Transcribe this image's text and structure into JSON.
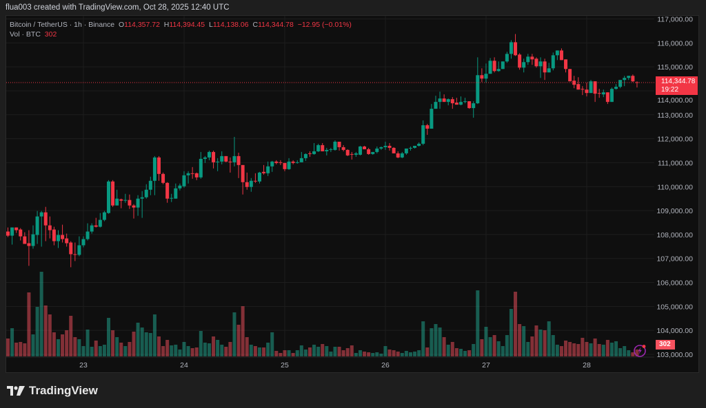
{
  "header": {
    "caption": "flua003 created with TradingView.com, Oct 28, 2025 12:40 UTC"
  },
  "legend": {
    "symbol": "Bitcoin / TetherUS · 1h · Binance",
    "o_label": "O",
    "o_value": "114,357.72",
    "h_label": "H",
    "h_value": "114,394.45",
    "l_label": "L",
    "l_value": "114,138.06",
    "c_label": "C",
    "c_value": "114,344.78",
    "change": "−12.95 (−0.01%)",
    "vol_label": "Vol · BTC",
    "vol_value": "302"
  },
  "price_badge": {
    "price": "114,344.78",
    "countdown": "19:22"
  },
  "volume_badge": {
    "value": "302"
  },
  "footer": {
    "logo_text": "TradingView"
  },
  "icons": {
    "alert": "lightning-alert-icon",
    "logo": "tradingview-logo-icon"
  },
  "colors": {
    "up": "#089981",
    "down": "#f23645",
    "background": "#0f0f0f",
    "price_line": "#f23645",
    "alert": "#9c27b0"
  },
  "chart_data": {
    "type": "candlestick",
    "symbol": "BTCUSDT",
    "interval": "1h",
    "ylim": [
      103000,
      117000
    ],
    "y_ticks": [
      "117,000.00",
      "116,000.00",
      "115,000.00",
      "114,000.00",
      "113,000.00",
      "112,000.00",
      "111,000.00",
      "110,000.00",
      "109,000.00",
      "108,000.00",
      "107,000.00",
      "106,000.00",
      "105,000.00",
      "104,000.00",
      "103,000.00"
    ],
    "y_tick_values": [
      117000,
      116000,
      115000,
      114000,
      113000,
      112000,
      111000,
      110000,
      109000,
      108000,
      107000,
      106000,
      105000,
      104000,
      103000
    ],
    "x_ticks": [
      {
        "label": "23",
        "time": "10-23 00:00"
      },
      {
        "label": "24",
        "time": "10-24 00:00"
      },
      {
        "label": "25",
        "time": "10-25 00:00"
      },
      {
        "label": "26",
        "time": "10-26 00:00"
      },
      {
        "label": "27",
        "time": "10-27 00:00"
      },
      {
        "label": "28",
        "time": "10-28 00:00"
      }
    ],
    "last_price": 114344.78,
    "grid": true,
    "columns": [
      "time",
      "open",
      "high",
      "low",
      "close",
      "volume"
    ],
    "candles": [
      [
        "10-22 06:00",
        108125,
        108296,
        107895,
        107953,
        780
      ],
      [
        "10-22 07:00",
        107953,
        108296,
        107581,
        108296,
        1230
      ],
      [
        "10-22 08:00",
        108296,
        108296,
        108067,
        108182,
        600
      ],
      [
        "10-22 09:00",
        108210,
        108268,
        107753,
        107924,
        630
      ],
      [
        "10-22 10:00",
        107924,
        108096,
        107609,
        107609,
        570
      ],
      [
        "10-22 11:00",
        107638,
        108182,
        106693,
        107523,
        2790
      ],
      [
        "10-22 12:00",
        107523,
        108382,
        107409,
        108010,
        960
      ],
      [
        "10-22 13:00",
        107982,
        108984,
        107609,
        108755,
        2160
      ],
      [
        "10-22 14:00",
        108755,
        108984,
        107495,
        108927,
        3690
      ],
      [
        "10-22 15:00",
        108927,
        109155,
        107724,
        108382,
        2220
      ],
      [
        "10-22 16:00",
        108382,
        108755,
        107838,
        108182,
        1830
      ],
      [
        "10-22 17:00",
        108210,
        108325,
        107552,
        107724,
        1050
      ],
      [
        "10-22 18:00",
        107724,
        108182,
        107438,
        107982,
        750
      ],
      [
        "10-22 19:00",
        107982,
        108411,
        107667,
        107810,
        960
      ],
      [
        "10-22 20:00",
        107838,
        108039,
        107495,
        107638,
        1140
      ],
      [
        "10-22 21:00",
        107667,
        107724,
        106635,
        107180,
        1770
      ],
      [
        "10-22 22:00",
        107180,
        107667,
        106893,
        107151,
        840
      ],
      [
        "10-22 23:00",
        107151,
        107924,
        107094,
        107552,
        750
      ],
      [
        "10-23 00:00",
        107552,
        107924,
        107466,
        107810,
        450
      ],
      [
        "10-23 01:00",
        107810,
        108469,
        107753,
        108125,
        1170
      ],
      [
        "10-23 02:00",
        108125,
        108469,
        108039,
        108382,
        420
      ],
      [
        "10-23 03:00",
        108382,
        108697,
        108296,
        108325,
        690
      ],
      [
        "10-23 04:00",
        108325,
        108898,
        108296,
        108612,
        450
      ],
      [
        "10-23 05:00",
        108612,
        108984,
        108555,
        108927,
        510
      ],
      [
        "10-23 06:00",
        108898,
        110272,
        108869,
        110215,
        1680
      ],
      [
        "10-23 07:00",
        110215,
        110272,
        109155,
        109213,
        1140
      ],
      [
        "10-23 08:00",
        109213,
        109871,
        109213,
        109499,
        840
      ],
      [
        "10-23 09:00",
        109470,
        109499,
        109098,
        109413,
        600
      ],
      [
        "10-23 10:00",
        109413,
        109699,
        109327,
        109442,
        450
      ],
      [
        "10-23 11:00",
        109442,
        109671,
        109069,
        109213,
        630
      ],
      [
        "10-23 12:00",
        109213,
        109270,
        108669,
        109127,
        1080
      ],
      [
        "10-23 13:00",
        109127,
        109642,
        108783,
        109499,
        1470
      ],
      [
        "10-23 14:00",
        109499,
        109814,
        108697,
        109556,
        1260
      ],
      [
        "10-23 15:00",
        109556,
        110100,
        109499,
        109871,
        1050
      ],
      [
        "10-23 16:00",
        109871,
        110415,
        109642,
        110243,
        1020
      ],
      [
        "10-23 17:00",
        110243,
        111274,
        109642,
        111217,
        1830
      ],
      [
        "10-23 18:00",
        111217,
        111274,
        110243,
        110530,
        870
      ],
      [
        "10-23 19:00",
        110530,
        110587,
        110100,
        110157,
        450
      ],
      [
        "10-23 20:00",
        110157,
        110186,
        109327,
        109499,
        720
      ],
      [
        "10-23 21:00",
        109499,
        109699,
        109356,
        109528,
        480
      ],
      [
        "10-23 22:00",
        109499,
        110129,
        109499,
        109928,
        510
      ],
      [
        "10-23 23:00",
        109928,
        110129,
        109842,
        110043,
        300
      ],
      [
        "10-24 00:00",
        110014,
        110644,
        109957,
        110472,
        630
      ],
      [
        "10-24 01:00",
        110472,
        110644,
        110129,
        110558,
        450
      ],
      [
        "10-24 02:00",
        110558,
        110816,
        110329,
        110530,
        360
      ],
      [
        "10-24 03:00",
        110558,
        110587,
        110272,
        110386,
        390
      ],
      [
        "10-24 04:00",
        110386,
        111446,
        110329,
        111159,
        1110
      ],
      [
        "10-24 05:00",
        111159,
        111274,
        110988,
        111217,
        600
      ],
      [
        "10-24 06:00",
        111217,
        111503,
        111102,
        111446,
        570
      ],
      [
        "10-24 07:00",
        111446,
        111503,
        110759,
        111016,
        870
      ],
      [
        "10-24 08:00",
        111016,
        111188,
        110644,
        111045,
        720
      ],
      [
        "10-24 09:00",
        111045,
        111474,
        110930,
        111274,
        510
      ],
      [
        "10-24 10:00",
        111274,
        111274,
        111016,
        111045,
        420
      ],
      [
        "10-24 11:00",
        111045,
        111217,
        110587,
        111016,
        630
      ],
      [
        "10-24 12:00",
        111016,
        112076,
        110845,
        111274,
        1920
      ],
      [
        "10-24 13:00",
        111274,
        111417,
        110358,
        110902,
        1380
      ],
      [
        "10-24 14:00",
        110902,
        110902,
        109671,
        110186,
        2190
      ],
      [
        "10-24 15:00",
        110186,
        110587,
        109871,
        109986,
        840
      ],
      [
        "10-24 16:00",
        109986,
        110358,
        109785,
        110243,
        510
      ],
      [
        "10-24 17:00",
        110243,
        110558,
        110157,
        110215,
        450
      ],
      [
        "10-24 18:00",
        110215,
        110616,
        110129,
        110587,
        390
      ],
      [
        "10-24 19:00",
        110616,
        110902,
        110501,
        110558,
        390
      ],
      [
        "10-24 20:00",
        110558,
        111045,
        110444,
        110845,
        600
      ],
      [
        "10-24 21:00",
        110845,
        111074,
        110616,
        111045,
        1050
      ],
      [
        "10-24 22:00",
        111045,
        111102,
        110930,
        110988,
        240
      ],
      [
        "10-24 23:00",
        111016,
        111102,
        110902,
        110988,
        150
      ],
      [
        "10-25 00:00",
        110988,
        110988,
        110644,
        110730,
        270
      ],
      [
        "10-25 01:00",
        110730,
        111188,
        110701,
        111045,
        270
      ],
      [
        "10-25 02:00",
        111045,
        111102,
        110930,
        110988,
        150
      ],
      [
        "10-25 03:00",
        110988,
        111102,
        110959,
        111016,
        270
      ],
      [
        "10-25 04:00",
        111016,
        111446,
        111016,
        111188,
        480
      ],
      [
        "10-25 05:00",
        111188,
        111389,
        111074,
        111360,
        300
      ],
      [
        "10-25 06:00",
        111389,
        111474,
        111245,
        111360,
        390
      ],
      [
        "10-25 07:00",
        111360,
        111818,
        111331,
        111474,
        510
      ],
      [
        "10-25 08:00",
        111474,
        111789,
        111446,
        111732,
        420
      ],
      [
        "10-25 09:00",
        111732,
        111818,
        111474,
        111474,
        540
      ],
      [
        "10-25 10:00",
        111474,
        111618,
        111303,
        111532,
        450
      ],
      [
        "10-25 11:00",
        111532,
        111618,
        111446,
        111560,
        210
      ],
      [
        "10-25 12:00",
        111532,
        111932,
        111503,
        111875,
        420
      ],
      [
        "10-25 13:00",
        111875,
        111875,
        111503,
        111646,
        420
      ],
      [
        "10-25 14:00",
        111646,
        111732,
        111474,
        111532,
        270
      ],
      [
        "10-25 15:00",
        111532,
        111560,
        111274,
        111303,
        360
      ],
      [
        "10-25 16:00",
        111360,
        111446,
        111131,
        111331,
        480
      ],
      [
        "10-25 17:00",
        111331,
        111446,
        111245,
        111389,
        150
      ],
      [
        "10-25 18:00",
        111331,
        111703,
        111303,
        111675,
        270
      ],
      [
        "10-25 19:00",
        111675,
        111703,
        111560,
        111560,
        210
      ],
      [
        "10-25 20:00",
        111560,
        111618,
        111331,
        111360,
        180
      ],
      [
        "10-25 21:00",
        111360,
        111446,
        111331,
        111446,
        150
      ],
      [
        "10-25 22:00",
        111446,
        111675,
        111389,
        111589,
        180
      ],
      [
        "10-25 23:00",
        111589,
        111675,
        111532,
        111646,
        120
      ],
      [
        "10-26 00:00",
        111646,
        111875,
        111532,
        111703,
        450
      ],
      [
        "10-26 01:00",
        111703,
        111818,
        111503,
        111618,
        300
      ],
      [
        "10-26 02:00",
        111618,
        111646,
        111389,
        111389,
        270
      ],
      [
        "10-26 03:00",
        111389,
        111474,
        111188,
        111217,
        210
      ],
      [
        "10-26 04:00",
        111217,
        111446,
        111188,
        111389,
        150
      ],
      [
        "10-26 05:00",
        111389,
        111589,
        111331,
        111589,
        240
      ],
      [
        "10-26 06:00",
        111589,
        111675,
        111503,
        111618,
        180
      ],
      [
        "10-26 07:00",
        111618,
        111703,
        111589,
        111703,
        210
      ],
      [
        "10-26 08:00",
        111703,
        111847,
        111675,
        111789,
        270
      ],
      [
        "10-26 09:00",
        111790,
        112763,
        111732,
        112562,
        1530
      ],
      [
        "10-26 10:00",
        112562,
        112620,
        112162,
        112419,
        390
      ],
      [
        "10-26 11:00",
        112419,
        113450,
        112419,
        113249,
        1230
      ],
      [
        "10-26 12:00",
        113249,
        113793,
        113249,
        113536,
        1410
      ],
      [
        "10-26 13:00",
        113536,
        113965,
        113249,
        113679,
        1260
      ],
      [
        "10-26 14:00",
        113679,
        113851,
        113536,
        113536,
        840
      ],
      [
        "10-26 15:00",
        113536,
        113679,
        113393,
        113650,
        510
      ],
      [
        "10-26 16:00",
        113650,
        113736,
        113249,
        113479,
        630
      ],
      [
        "10-26 17:00",
        113507,
        113708,
        113421,
        113421,
        360
      ],
      [
        "10-26 18:00",
        113421,
        113765,
        113393,
        113536,
        330
      ],
      [
        "10-26 19:00",
        113536,
        113708,
        113479,
        113564,
        240
      ],
      [
        "10-26 20:00",
        113564,
        113564,
        113249,
        113278,
        270
      ],
      [
        "10-26 21:00",
        113278,
        113564,
        112877,
        113479,
        540
      ],
      [
        "10-26 22:00",
        113479,
        115397,
        113450,
        114652,
        2880
      ],
      [
        "10-26 23:00",
        114652,
        114939,
        114366,
        114509,
        750
      ],
      [
        "10-27 00:00",
        114509,
        115139,
        114337,
        114710,
        1290
      ],
      [
        "10-27 01:00",
        114710,
        115368,
        114710,
        115254,
        840
      ],
      [
        "10-27 02:00",
        115254,
        115397,
        114767,
        114824,
        930
      ],
      [
        "10-27 03:00",
        114824,
        115225,
        114796,
        114910,
        660
      ],
      [
        "10-27 04:00",
        114910,
        115225,
        114910,
        115225,
        450
      ],
      [
        "10-27 05:00",
        115225,
        115626,
        115168,
        115540,
        930
      ],
      [
        "10-27 06:00",
        115540,
        116112,
        115340,
        116027,
        2070
      ],
      [
        "10-27 07:00",
        116027,
        116370,
        115454,
        115483,
        2820
      ],
      [
        "10-27 08:00",
        115512,
        115569,
        114881,
        114967,
        1410
      ],
      [
        "10-27 09:00",
        114967,
        115340,
        114767,
        115197,
        1320
      ],
      [
        "10-27 10:00",
        115197,
        115540,
        115082,
        115425,
        630
      ],
      [
        "10-27 11:00",
        115425,
        115540,
        115082,
        115311,
        870
      ],
      [
        "10-27 12:00",
        115340,
        115397,
        114967,
        115025,
        1350
      ],
      [
        "10-27 13:00",
        115025,
        115397,
        114538,
        115225,
        1170
      ],
      [
        "10-27 14:00",
        115225,
        115340,
        114452,
        114767,
        1140
      ],
      [
        "10-27 15:00",
        114767,
        115168,
        114767,
        114939,
        1530
      ],
      [
        "10-27 16:00",
        114939,
        115597,
        114853,
        115483,
        930
      ],
      [
        "10-27 17:00",
        115483,
        115683,
        115282,
        115683,
        510
      ],
      [
        "10-27 18:00",
        115683,
        115769,
        115282,
        115282,
        450
      ],
      [
        "10-27 19:00",
        115311,
        115311,
        114767,
        114910,
        690
      ],
      [
        "10-27 20:00",
        114910,
        114910,
        114395,
        114395,
        630
      ],
      [
        "10-27 21:00",
        114423,
        114624,
        114108,
        114252,
        570
      ],
      [
        "10-27 22:00",
        114280,
        114566,
        114051,
        114051,
        540
      ],
      [
        "10-27 23:00",
        114080,
        114194,
        113822,
        114051,
        810
      ],
      [
        "10-28 00:00",
        114051,
        114337,
        113765,
        113908,
        630
      ],
      [
        "10-28 01:00",
        113908,
        114452,
        113908,
        114395,
        570
      ],
      [
        "10-28 02:00",
        114395,
        114395,
        113536,
        113879,
        780
      ],
      [
        "10-28 03:00",
        113908,
        114080,
        113708,
        113879,
        540
      ],
      [
        "10-28 04:00",
        113850,
        114051,
        113736,
        113936,
        510
      ],
      [
        "10-28 05:00",
        113936,
        113936,
        113450,
        113536,
        720
      ],
      [
        "10-28 06:00",
        113536,
        114137,
        113536,
        114080,
        600
      ],
      [
        "10-28 07:00",
        114080,
        114280,
        114051,
        114166,
        660
      ],
      [
        "10-28 08:00",
        114166,
        114452,
        114108,
        114452,
        360
      ],
      [
        "10-28 09:00",
        114452,
        114624,
        114194,
        114538,
        450
      ],
      [
        "10-28 10:00",
        114538,
        114624,
        114452,
        114624,
        270
      ],
      [
        "10-28 11:00",
        114624,
        114681,
        114366,
        114394,
        180
      ],
      [
        "10-28 12:00",
        114357.72,
        114394.45,
        114138.06,
        114344.78,
        302
      ]
    ]
  }
}
